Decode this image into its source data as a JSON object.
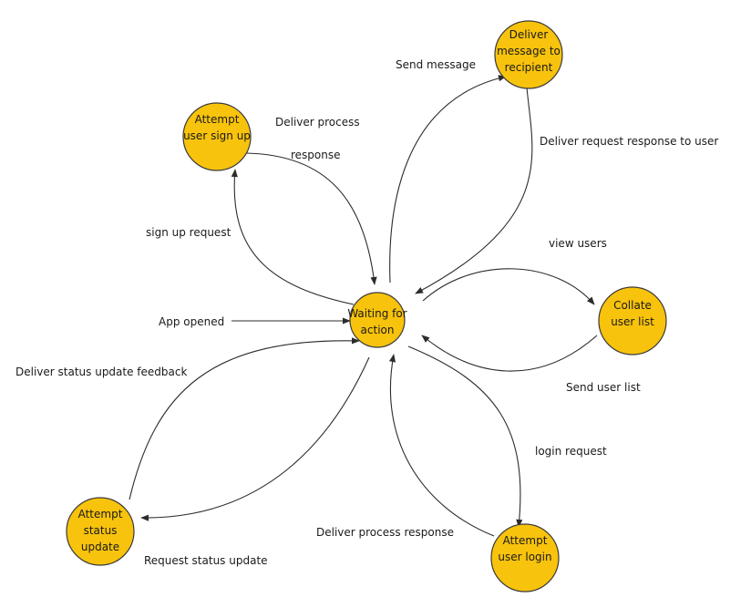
{
  "nodes": {
    "waiting": [
      "Waiting for",
      "action"
    ],
    "deliver_message": [
      "Deliver",
      "message to",
      "recipient"
    ],
    "attempt_signup": [
      "Attempt",
      "user sign up"
    ],
    "collate": [
      "Collate",
      "user list"
    ],
    "attempt_login": [
      "Attempt",
      "user login"
    ],
    "attempt_status": [
      "Attempt",
      "status",
      "update"
    ]
  },
  "edges": {
    "send_message": "Send message",
    "deliver_request_response": "Deliver request response to user",
    "deliver_process_response_signup_1": "Deliver process",
    "deliver_process_response_signup_2": "response",
    "signup_request": "sign up request",
    "view_users": "view users",
    "send_user_list": "Send user list",
    "app_opened": "App opened",
    "deliver_status_feedback": "Deliver status update feedback",
    "login_request": "login request",
    "deliver_process_response_login": "Deliver process response",
    "request_status_update": "Request status update"
  },
  "colors": {
    "node_fill": "#f8c30c",
    "stroke": "#2c2c2c"
  }
}
